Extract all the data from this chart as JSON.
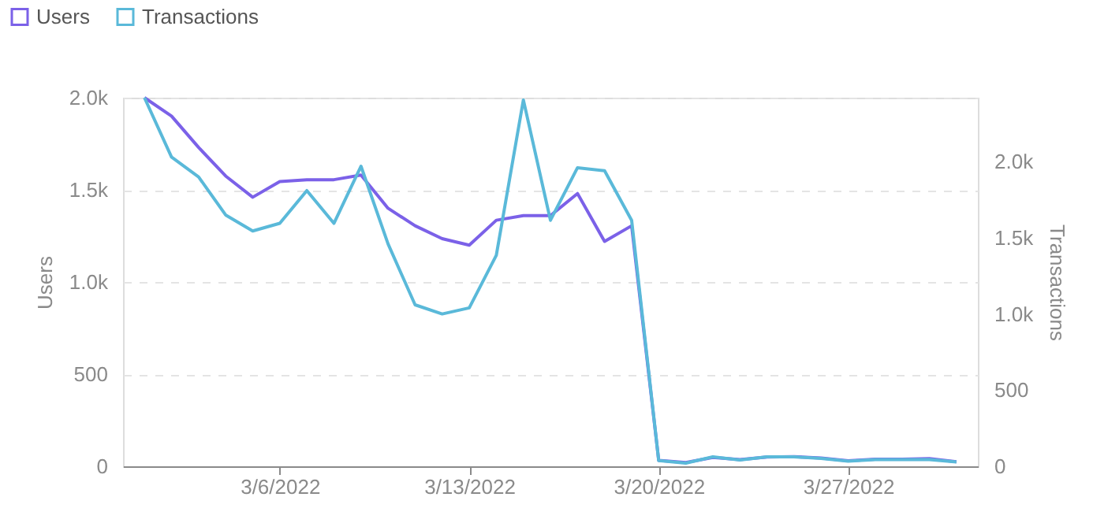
{
  "chart_data": {
    "type": "line",
    "xlabel": null,
    "ylabel": "Users",
    "y2label": "Transactions",
    "x": [
      "2022-03-01",
      "2022-03-02",
      "2022-03-03",
      "2022-03-04",
      "2022-03-05",
      "2022-03-06",
      "2022-03-07",
      "2022-03-08",
      "2022-03-09",
      "2022-03-10",
      "2022-03-11",
      "2022-03-12",
      "2022-03-13",
      "2022-03-14",
      "2022-03-15",
      "2022-03-16",
      "2022-03-17",
      "2022-03-18",
      "2022-03-19",
      "2022-03-20",
      "2022-03-21",
      "2022-03-22",
      "2022-03-23",
      "2022-03-24",
      "2022-03-25",
      "2022-03-26",
      "2022-03-27",
      "2022-03-28",
      "2022-03-29",
      "2022-03-30",
      "2022-03-31"
    ],
    "series": [
      {
        "name": "Users",
        "color": "#7b61e8",
        "values": [
          2000,
          1900,
          1730,
          1575,
          1460,
          1545,
          1555,
          1555,
          1580,
          1400,
          1305,
          1235,
          1200,
          1335,
          1360,
          1360,
          1480,
          1220,
          1305,
          32,
          20,
          48,
          36,
          50,
          52,
          45,
          30,
          38,
          38,
          42,
          25
        ]
      },
      {
        "name": "Transactions",
        "color": "#5ab9d9",
        "axis": "y2",
        "values": [
          2420,
          2030,
          1900,
          1650,
          1545,
          1595,
          1810,
          1595,
          1970,
          1460,
          1060,
          1000,
          1040,
          1385,
          2405,
          1615,
          1960,
          1940,
          1615,
          38,
          21,
          62,
          41,
          62,
          62,
          52,
          34,
          44,
          44,
          44,
          28
        ]
      }
    ],
    "xlim": [
      "2022-02-28T05:00",
      "2022-03-31T19:00"
    ],
    "xticks": [
      {
        "value": "2022-03-06",
        "label": "3/6/2022"
      },
      {
        "value": "2022-03-13",
        "label": "3/13/2022"
      },
      {
        "value": "2022-03-20",
        "label": "3/20/2022"
      },
      {
        "value": "2022-03-27",
        "label": "3/27/2022"
      }
    ],
    "ylim": [
      0,
      2000
    ],
    "yticks": [
      {
        "value": 0,
        "label": "0"
      },
      {
        "value": 500,
        "label": "500"
      },
      {
        "value": 1000,
        "label": "1.0k"
      },
      {
        "value": 1500,
        "label": "1.5k"
      },
      {
        "value": 2000,
        "label": "2.0k"
      }
    ],
    "y2lim": [
      0,
      2420
    ],
    "y2ticks": [
      {
        "value": 0,
        "label": "0"
      },
      {
        "value": 500,
        "label": "500"
      },
      {
        "value": 1000,
        "label": "1.0k"
      },
      {
        "value": 1500,
        "label": "1.5k"
      },
      {
        "value": 2000,
        "label": "2.0k"
      }
    ],
    "grid": "y",
    "legend": "top left",
    "marker": "none",
    "line_style": "solid"
  }
}
